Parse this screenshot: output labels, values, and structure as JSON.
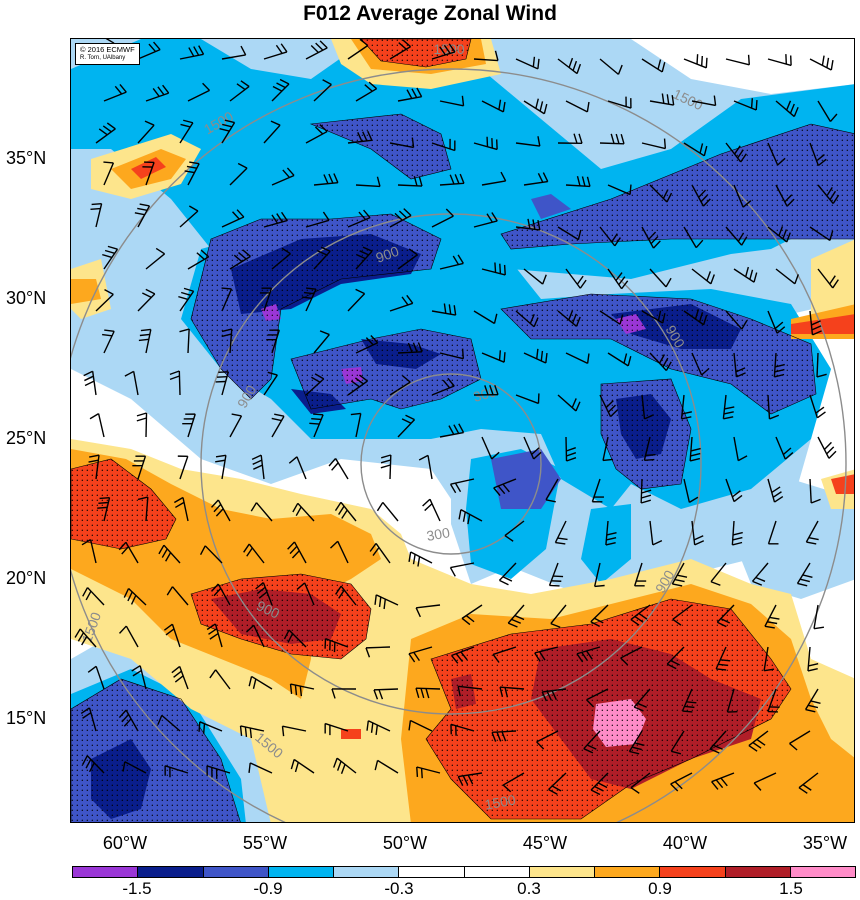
{
  "title": "F012 Average Zonal Wind",
  "credit": [
    "© 2016 ECMWF",
    "R. Torn, UAlbany"
  ],
  "latitude_labels": [
    "35°N",
    "30°N",
    "25°N",
    "20°N",
    "15°N"
  ],
  "longitude_labels": [
    "60°W",
    "55°W",
    "50°W",
    "45°W",
    "40°W",
    "35°W"
  ],
  "colorbar": {
    "colors": [
      "#9a36d6",
      "#0a1e8c",
      "#3f55c8",
      "#00b4f0",
      "#acd8f5",
      "#ffffff",
      "#ffffff",
      "#fde58c",
      "#fda81e",
      "#f5411c",
      "#b01e28",
      "#ff8cc8"
    ],
    "labels": [
      "-1.5",
      "-0.9",
      "-0.3",
      "0.3",
      "0.9",
      "1.5"
    ]
  },
  "range_ring_labels": [
    "300",
    "300",
    "900",
    "900",
    "900",
    "900",
    "900",
    "1500",
    "1500",
    "1500",
    "1500",
    "1500",
    "1500"
  ],
  "legend_placement": "bottom"
}
